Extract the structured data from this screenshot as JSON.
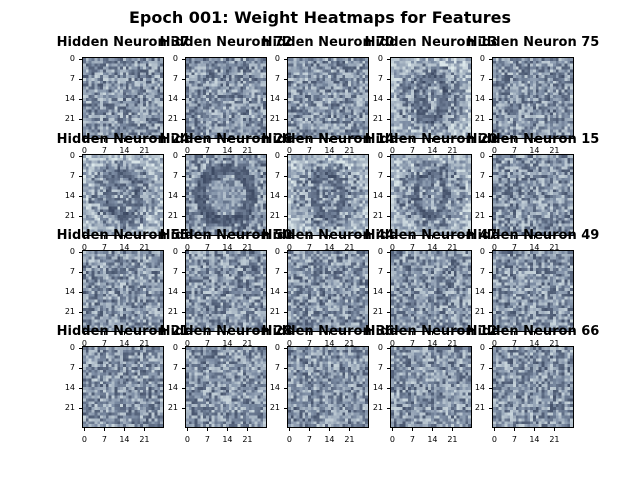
{
  "figure": {
    "title": "Epoch 001: Weight Heatmaps for Features"
  },
  "chart_data": {
    "type": "heatmap",
    "title": "Epoch 001: Weight Heatmaps for Features",
    "grid": {
      "rows": 4,
      "cols": 5
    },
    "image_size": [
      28,
      28
    ],
    "colormap": {
      "low": "#1f2a44",
      "mid": "#7f8fa6",
      "high": "#e8f3f3"
    },
    "x_ticks": [
      "0",
      "7",
      "14",
      "21"
    ],
    "y_ticks": [
      "0",
      "7",
      "14",
      "21"
    ],
    "panels": [
      {
        "title": "Hidden Neuron 37",
        "pattern": "noise"
      },
      {
        "title": "Hidden Neuron 72",
        "pattern": "noise"
      },
      {
        "title": "Hidden Neuron 70",
        "pattern": "noise"
      },
      {
        "title": "Hidden Neuron 13",
        "pattern": "faint-digit"
      },
      {
        "title": "Hidden Neuron 75",
        "pattern": "noise"
      },
      {
        "title": "Hidden Neuron 24",
        "pattern": "faint-digit"
      },
      {
        "title": "Hidden Neuron 26",
        "pattern": "ring"
      },
      {
        "title": "Hidden Neuron 14",
        "pattern": "faint-digit"
      },
      {
        "title": "Hidden Neuron 20",
        "pattern": "faint-digit"
      },
      {
        "title": "Hidden Neuron 15",
        "pattern": "noise"
      },
      {
        "title": "Hidden Neuron 55",
        "pattern": "noise"
      },
      {
        "title": "Hidden Neuron 50",
        "pattern": "noise"
      },
      {
        "title": "Hidden Neuron 44",
        "pattern": "noise"
      },
      {
        "title": "Hidden Neuron 47",
        "pattern": "noise"
      },
      {
        "title": "Hidden Neuron 49",
        "pattern": "noise"
      },
      {
        "title": "Hidden Neuron 21",
        "pattern": "noise"
      },
      {
        "title": "Hidden Neuron 28",
        "pattern": "noise"
      },
      {
        "title": "Hidden Neuron 36",
        "pattern": "noise"
      },
      {
        "title": "Hidden Neuron 12",
        "pattern": "noise"
      },
      {
        "title": "Hidden Neuron 66",
        "pattern": "noise"
      }
    ]
  }
}
